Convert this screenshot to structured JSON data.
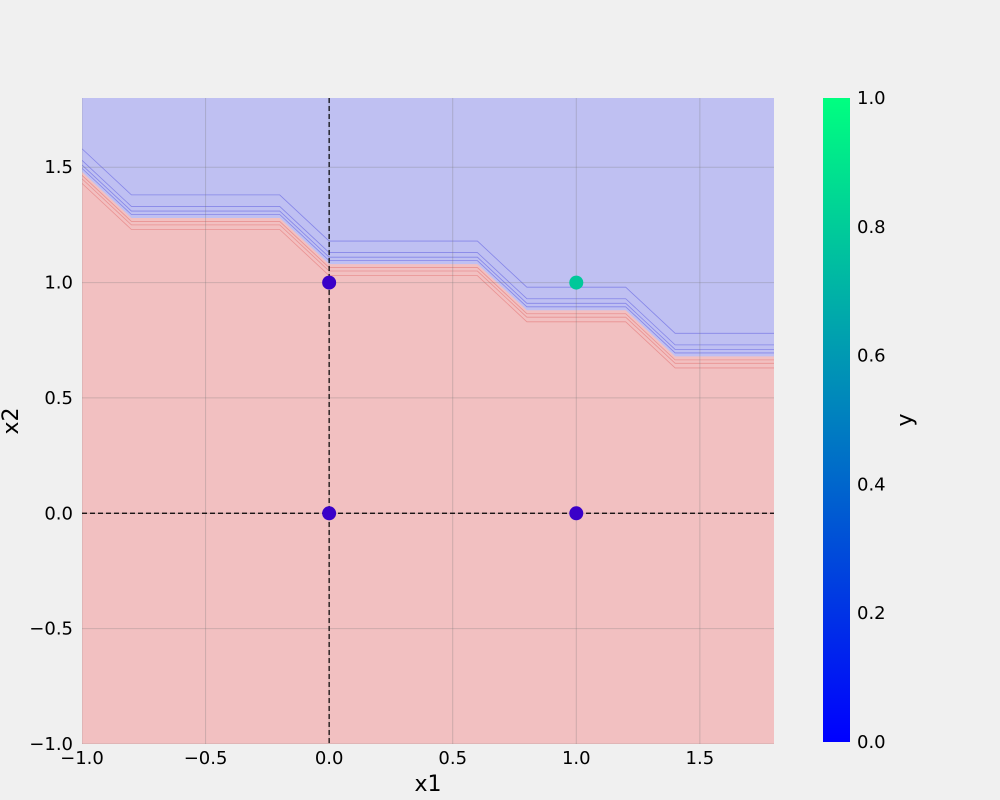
{
  "chart_data": {
    "type": "scatter",
    "xlabel": "x1",
    "ylabel": "x2",
    "xlim": [
      -1.0,
      1.8
    ],
    "ylim": [
      -1.0,
      1.8
    ],
    "grid": true,
    "x_ticks": [
      -1.0,
      -0.5,
      0.0,
      0.5,
      1.0,
      1.5
    ],
    "y_ticks": [
      -1.0,
      -0.5,
      0.0,
      0.5,
      1.0,
      1.5
    ],
    "x_tick_labels": [
      "−1.0",
      "−0.5",
      "0.0",
      "0.5",
      "1.0",
      "1.5"
    ],
    "y_tick_labels": [
      "−1.0",
      "−0.5",
      "0.0",
      "0.5",
      "1.0",
      "1.5"
    ],
    "reference_lines": {
      "x": 0.0,
      "y": 0.0,
      "style": "dashed",
      "color": "#000000"
    },
    "decision_boundary": {
      "x": [
        -1.0,
        -0.8,
        -0.2,
        0.0,
        0.6,
        0.8,
        1.2,
        1.4,
        1.8
      ],
      "y": [
        1.48,
        1.28,
        1.28,
        1.08,
        1.08,
        0.88,
        0.88,
        0.68,
        0.68
      ],
      "contour_offsets": [
        -0.05,
        -0.03,
        -0.015,
        0.015,
        0.03,
        0.05,
        0.1
      ],
      "region_below_color": "#f2c0c1",
      "region_above_color": "#bfc0f2",
      "line_below_color": "#e88a8a",
      "line_above_color": "#7b7be6"
    },
    "points": [
      {
        "x": 0.0,
        "y": 0.0,
        "label": 0
      },
      {
        "x": 1.0,
        "y": 0.0,
        "label": 0
      },
      {
        "x": 0.0,
        "y": 1.0,
        "label": 0
      },
      {
        "x": 1.0,
        "y": 1.0,
        "label": 1
      }
    ],
    "point_colors": {
      "0": "#3a00c8",
      "1": "#00c89a"
    },
    "colorbar": {
      "label": "y",
      "range": [
        0.0,
        1.0
      ],
      "ticks": [
        0.0,
        0.2,
        0.4,
        0.6,
        0.8,
        1.0
      ],
      "tick_labels": [
        "0.0",
        "0.2",
        "0.4",
        "0.6",
        "0.8",
        "1.0"
      ],
      "colormap": "winter",
      "color_low": "#0000ff",
      "color_high": "#00ff80"
    }
  }
}
